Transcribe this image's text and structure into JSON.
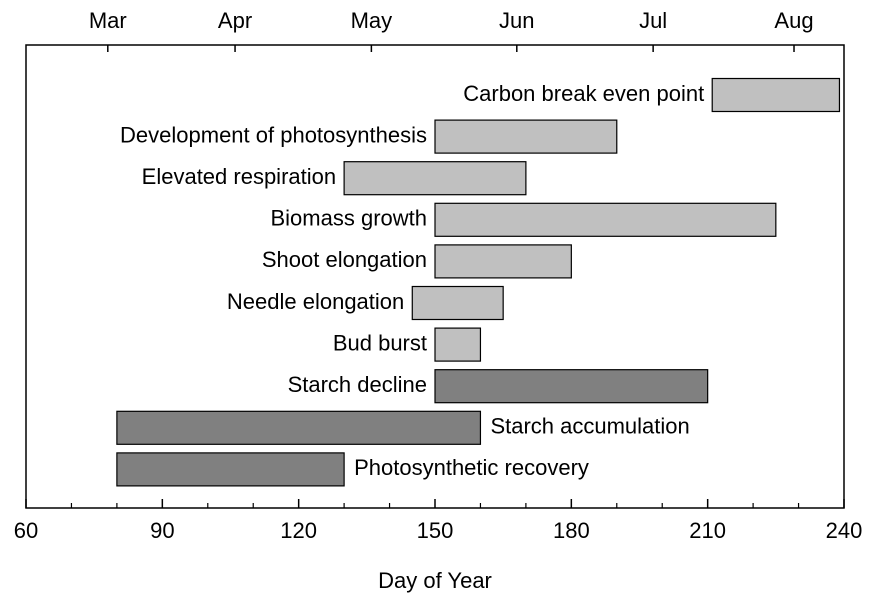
{
  "chart_data": {
    "type": "floating-bar",
    "xlabel": "Day of Year",
    "categories": [
      "Carbon break even point",
      "Development of photosynthesis",
      "Elevated respiration",
      "Biomass growth",
      "Shoot elongation",
      "Needle elongation",
      "Bud burst",
      "Starch decline",
      "Starch accumulation",
      "Photosynthetic recovery"
    ],
    "starts": [
      211,
      150,
      130,
      150,
      150,
      145,
      150,
      150,
      80,
      80
    ],
    "ends": [
      239,
      190,
      170,
      225,
      180,
      165,
      160,
      210,
      160,
      130
    ],
    "colors": [
      "#c0c0c0",
      "#c0c0c0",
      "#c0c0c0",
      "#c0c0c0",
      "#c0c0c0",
      "#c0c0c0",
      "#c0c0c0",
      "#808080",
      "#808080",
      "#808080"
    ],
    "xlim": [
      60,
      240
    ],
    "xticks": [
      60,
      90,
      120,
      150,
      180,
      210,
      240
    ],
    "xticks_minor": [
      70,
      80,
      100,
      110,
      130,
      140,
      160,
      170,
      190,
      200,
      220,
      230
    ],
    "x2ticks": [
      {
        "value": 78,
        "label": "Mar"
      },
      {
        "value": 106,
        "label": "Apr"
      },
      {
        "value": 136,
        "label": "May"
      },
      {
        "value": 168,
        "label": "Jun"
      },
      {
        "value": 198,
        "label": "Jul"
      },
      {
        "value": 229,
        "label": "Aug"
      }
    ]
  }
}
